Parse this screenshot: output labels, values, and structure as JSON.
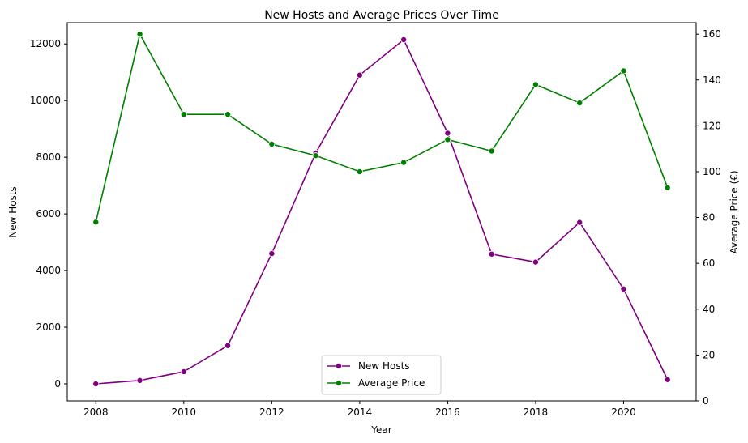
{
  "chart_data": {
    "type": "line",
    "title": "New Hosts and Average Prices Over Time",
    "xlabel": "Year",
    "ylabel": "New Hosts",
    "y2label": "Average Price (€)",
    "x": [
      2008,
      2009,
      2010,
      2011,
      2012,
      2013,
      2014,
      2015,
      2016,
      2017,
      2018,
      2019,
      2020,
      2021
    ],
    "xlim": [
      2007.35,
      2021.65
    ],
    "xticks": [
      2008,
      2010,
      2012,
      2014,
      2016,
      2018,
      2020
    ],
    "ylim": [
      -600,
      12750
    ],
    "yticks": [
      0,
      2000,
      4000,
      6000,
      8000,
      10000,
      12000
    ],
    "y2lim": [
      0,
      165
    ],
    "y2ticks": [
      0,
      20,
      40,
      60,
      80,
      100,
      120,
      140,
      160
    ],
    "legend_position": "bottom-center",
    "series": [
      {
        "name": "New Hosts",
        "axis": "left",
        "color": "#800080",
        "values": [
          0,
          120,
          430,
          1350,
          4600,
          8150,
          10900,
          12150,
          8850,
          4580,
          4300,
          5700,
          3350,
          150
        ]
      },
      {
        "name": "Average Price",
        "axis": "right",
        "color": "#008000",
        "values": [
          78,
          160,
          125,
          125,
          112,
          107,
          100,
          104,
          114,
          109,
          138,
          130,
          144,
          93
        ]
      }
    ]
  }
}
